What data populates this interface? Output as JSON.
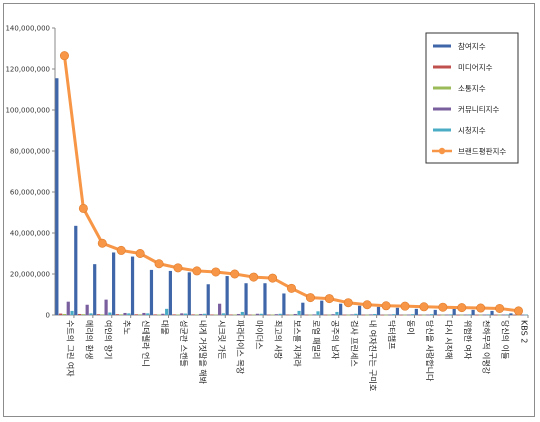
{
  "chart_data": {
    "type": "bar",
    "title": "",
    "xlabel": "",
    "ylabel": "",
    "ylim": [
      0,
      140000000
    ],
    "yticks": [
      "0",
      "20,000,000",
      "40,000,000",
      "60,000,000",
      "80,000,000",
      "100,000,000",
      "120,000,000",
      "140,000,000"
    ],
    "grid": false,
    "legend_position": "top-right",
    "categories": [
      "수트의 그린 여자",
      "메리의 환생",
      "여인의 향기",
      "추노",
      "신데렐라 언니",
      "대물",
      "성균관 스캔들",
      "내게 거짓말을 해봐",
      "시크릿 가든",
      "파라다이스 목장",
      "마이더스",
      "최고의 사랑",
      "보스를 지켜라",
      "로열 패밀리",
      "공주의 남자",
      "검사 프린세스",
      "내 여자친구는 구미호",
      "닥터챔프",
      "동이",
      "당신을 사랑합니다",
      "다시 시작해",
      "위험한 여자",
      "천하무적 이평강",
      "당신의 이들",
      "KBS 2"
    ],
    "series": [
      {
        "name": "참여지수",
        "type": "bar",
        "color": "#3f66a8",
        "values": [
          115500000,
          43500000,
          24800000,
          30500000,
          28500000,
          22000000,
          21500000,
          20800000,
          15000000,
          19000000,
          15500000,
          15500000,
          10500000,
          6000000,
          7000000,
          5500000,
          4500000,
          4000000,
          3500000,
          3000000,
          2500000,
          3000000,
          2500000,
          2000000,
          800000
        ]
      },
      {
        "name": "미디어지수",
        "type": "bar",
        "color": "#c0504d",
        "values": [
          700000,
          500000,
          400000,
          400000,
          350000,
          300000,
          300000,
          300000,
          250000,
          250000,
          200000,
          200000,
          200000,
          150000,
          150000,
          150000,
          150000,
          100000,
          100000,
          100000,
          100000,
          100000,
          100000,
          100000,
          100000
        ]
      },
      {
        "name": "소통지수",
        "type": "bar",
        "color": "#9bbb59",
        "values": [
          500000,
          400000,
          300000,
          300000,
          300000,
          250000,
          250000,
          250000,
          200000,
          200000,
          200000,
          200000,
          150000,
          150000,
          150000,
          100000,
          100000,
          100000,
          100000,
          100000,
          100000,
          100000,
          100000,
          100000,
          100000
        ]
      },
      {
        "name": "커뮤니티지수",
        "type": "bar",
        "color": "#7a5f9e",
        "values": [
          6500000,
          5000000,
          7500000,
          1000000,
          1000000,
          600000,
          800000,
          500000,
          5500000,
          500000,
          600000,
          400000,
          500000,
          300000,
          400000,
          300000,
          300000,
          200000,
          200000,
          200000,
          200000,
          200000,
          200000,
          200000,
          100000
        ]
      },
      {
        "name": "시청지수",
        "type": "bar",
        "color": "#4bacc6",
        "values": [
          2000000,
          800000,
          1200000,
          800000,
          800000,
          3000000,
          700000,
          600000,
          800000,
          1500000,
          600000,
          600000,
          2000000,
          1800000,
          1500000,
          600000,
          500000,
          400000,
          400000,
          400000,
          300000,
          300000,
          300000,
          300000,
          200000
        ]
      },
      {
        "name": "브랜드평판지수",
        "type": "line",
        "color": "#f79646",
        "values": [
          126500000,
          52000000,
          35000000,
          31500000,
          30000000,
          25000000,
          23000000,
          21500000,
          21000000,
          20000000,
          18500000,
          18000000,
          13000000,
          8500000,
          8000000,
          6000000,
          5000000,
          4500000,
          4300000,
          4000000,
          3800000,
          3600000,
          3400000,
          3200000,
          2000000
        ]
      }
    ]
  }
}
